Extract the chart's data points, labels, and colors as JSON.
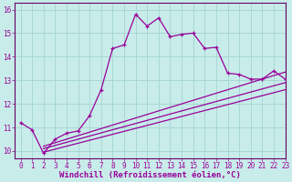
{
  "xlabel": "Windchill (Refroidissement éolien,°C)",
  "background_color": "#c8ecea",
  "grid_color": "#a8d8d4",
  "line_color": "#990099",
  "xlim": [
    -0.5,
    23
  ],
  "ylim": [
    9.7,
    16.3
  ],
  "yticks": [
    10,
    11,
    12,
    13,
    14,
    15,
    16
  ],
  "xticks": [
    0,
    1,
    2,
    3,
    4,
    5,
    6,
    7,
    8,
    9,
    10,
    11,
    12,
    13,
    14,
    15,
    16,
    17,
    18,
    19,
    20,
    21,
    22,
    23
  ],
  "main_x": [
    0,
    1,
    2,
    3,
    4,
    5,
    6,
    7,
    8,
    9,
    10,
    11,
    12,
    13,
    14,
    15,
    16,
    17,
    18,
    19,
    20,
    21,
    22,
    23
  ],
  "main_y": [
    11.2,
    10.9,
    9.9,
    10.5,
    10.75,
    10.85,
    11.5,
    12.6,
    14.35,
    14.5,
    15.8,
    15.3,
    15.65,
    14.85,
    14.95,
    15.0,
    14.35,
    14.4,
    13.3,
    13.25,
    13.05,
    13.05,
    13.4,
    13.05
  ],
  "line2_x": [
    2,
    23
  ],
  "line2_y": [
    10.2,
    13.35
  ],
  "line3_x": [
    2,
    23
  ],
  "line3_y": [
    10.1,
    12.9
  ],
  "line4_x": [
    2,
    23
  ],
  "line4_y": [
    9.95,
    12.6
  ],
  "xlabel_color": "#990099",
  "tick_color": "#990099",
  "tick_fontsize": 5.5,
  "xlabel_fontsize": 6.5,
  "spine_color": "#660066"
}
